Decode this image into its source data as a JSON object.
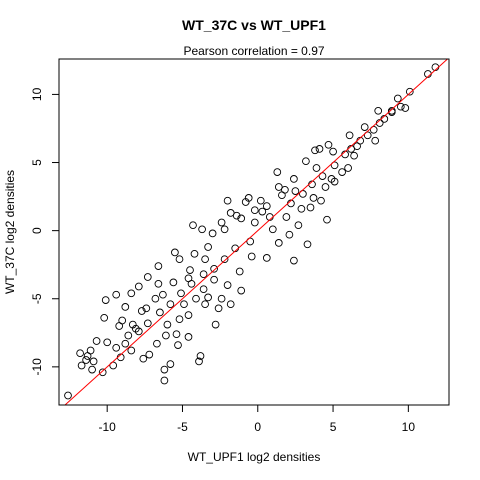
{
  "chart_data": {
    "type": "scatter",
    "title": "WT_37C vs WT_UPF1",
    "subtitle": "Pearson correlation =  0.97",
    "xlabel": "WT_UPF1 log2 densities",
    "ylabel": "WT_37C log2 densities",
    "xlim": [
      -13.2,
      12.7
    ],
    "ylim": [
      -12.8,
      12.6
    ],
    "xticks": [
      -10,
      -5,
      0,
      5,
      10
    ],
    "yticks": [
      -10,
      -5,
      0,
      5,
      10
    ],
    "xtick_labels": [
      "-10",
      "-5",
      "0",
      "5",
      "10"
    ],
    "ytick_labels": [
      "-10",
      "-5",
      "0",
      "5",
      "10"
    ],
    "point_color": "#000000",
    "line_color": "#ff0000",
    "reference_line": {
      "slope": 1,
      "intercept": 0
    },
    "grid": false,
    "points": [
      [
        -12.6,
        -12.1
      ],
      [
        -10.3,
        -10.4
      ],
      [
        -11.0,
        -10.2
      ],
      [
        -9.1,
        -9.3
      ],
      [
        -9.6,
        -9.9
      ],
      [
        -11.3,
        -9.2
      ],
      [
        -11.1,
        -8.8
      ],
      [
        -10.0,
        -8.2
      ],
      [
        -8.6,
        -7.7
      ],
      [
        -7.9,
        -7.4
      ],
      [
        -8.3,
        -6.9
      ],
      [
        -9.2,
        -7.0
      ],
      [
        -10.2,
        -6.4
      ],
      [
        -8.4,
        -8.8
      ],
      [
        -7.6,
        -9.4
      ],
      [
        -5.8,
        -9.8
      ],
      [
        -6.2,
        -10.2
      ],
      [
        -5.3,
        -8.4
      ],
      [
        -4.6,
        -7.8
      ],
      [
        -3.8,
        -9.2
      ],
      [
        -2.8,
        -6.9
      ],
      [
        -1.8,
        -5.4
      ],
      [
        -9.4,
        -4.7
      ],
      [
        -7.3,
        -3.4
      ],
      [
        -6.3,
        -4.7
      ],
      [
        -5.2,
        -2.1
      ],
      [
        -6.6,
        -2.6
      ],
      [
        -4.6,
        -3.5
      ],
      [
        -3.3,
        -1.2
      ],
      [
        -3.0,
        -0.2
      ],
      [
        -4.3,
        0.4
      ],
      [
        -2.4,
        0.6
      ],
      [
        -1.8,
        1.3
      ],
      [
        -1.4,
        1.1
      ],
      [
        -0.8,
        2.1
      ],
      [
        -0.6,
        2.4
      ],
      [
        -2.0,
        2.2
      ],
      [
        0.2,
        2.2
      ],
      [
        0.6,
        1.8
      ],
      [
        1.4,
        3.2
      ],
      [
        1.8,
        3.0
      ],
      [
        2.5,
        2.9
      ],
      [
        1.3,
        4.3
      ],
      [
        3.2,
        5.1
      ],
      [
        3.8,
        5.9
      ],
      [
        4.1,
        6.0
      ],
      [
        4.7,
        6.3
      ],
      [
        6.2,
        6.0
      ],
      [
        7.1,
        7.6
      ],
      [
        8.0,
        8.8
      ],
      [
        8.4,
        8.2
      ],
      [
        9.3,
        9.7
      ],
      [
        10.1,
        10.2
      ],
      [
        11.8,
        12.0
      ],
      [
        11.3,
        11.5
      ],
      [
        9.8,
        9.0
      ],
      [
        8.9,
        8.7
      ],
      [
        7.7,
        7.4
      ],
      [
        6.8,
        6.6
      ],
      [
        6.4,
        5.5
      ],
      [
        6.0,
        4.6
      ],
      [
        5.1,
        3.6
      ],
      [
        4.5,
        3.2
      ],
      [
        4.2,
        2.2
      ],
      [
        4.6,
        0.8
      ],
      [
        3.5,
        1.7
      ],
      [
        2.7,
        0.4
      ],
      [
        2.1,
        -0.3
      ],
      [
        1.4,
        -0.9
      ],
      [
        0.6,
        -2.0
      ],
      [
        -0.4,
        -1.9
      ],
      [
        -1.2,
        -3.0
      ],
      [
        -2.0,
        -4.0
      ],
      [
        -1.1,
        -4.4
      ],
      [
        -2.4,
        -5.0
      ],
      [
        -2.6,
        -5.7
      ],
      [
        -3.5,
        -5.4
      ],
      [
        -4.6,
        -6.2
      ],
      [
        -5.4,
        -7.6
      ],
      [
        -6.1,
        -7.7
      ],
      [
        -6.7,
        -8.3
      ],
      [
        -7.2,
        -9.1
      ],
      [
        -10.9,
        -9.6
      ],
      [
        -11.8,
        -9.0
      ],
      [
        -11.7,
        -9.9
      ],
      [
        -10.7,
        -8.1
      ],
      [
        -9.0,
        -6.6
      ],
      [
        -8.8,
        -5.6
      ],
      [
        -10.1,
        -5.1
      ],
      [
        -7.9,
        -4.1
      ],
      [
        -8.4,
        -4.6
      ],
      [
        -6.6,
        -3.9
      ],
      [
        -5.5,
        -1.6
      ],
      [
        -4.2,
        -1.7
      ],
      [
        -3.7,
        0.1
      ],
      [
        -2.2,
        0.1
      ],
      [
        -1.1,
        0.9
      ],
      [
        -0.2,
        1.5
      ],
      [
        -0.2,
        0.6
      ],
      [
        0.8,
        1.0
      ],
      [
        1.0,
        0.1
      ],
      [
        -0.5,
        -0.8
      ],
      [
        -1.5,
        -1.3
      ],
      [
        -2.2,
        -2.1
      ],
      [
        -2.9,
        -2.8
      ],
      [
        -3.6,
        -3.2
      ],
      [
        -4.4,
        -3.9
      ],
      [
        -5.1,
        -4.6
      ],
      [
        -5.8,
        -5.4
      ],
      [
        -6.5,
        -6.0
      ],
      [
        -7.3,
        -6.8
      ],
      [
        -8.1,
        -7.2
      ],
      [
        -8.8,
        -8.3
      ],
      [
        -9.4,
        -8.6
      ],
      [
        -7.7,
        -5.9
      ],
      [
        -4.9,
        -5.4
      ],
      [
        -3.6,
        -4.3
      ],
      [
        -2.9,
        -3.6
      ],
      [
        2.2,
        2.0
      ],
      [
        3.0,
        2.7
      ],
      [
        3.6,
        3.4
      ],
      [
        4.3,
        4.0
      ],
      [
        5.1,
        4.8
      ],
      [
        5.8,
        5.6
      ],
      [
        6.6,
        6.2
      ],
      [
        7.3,
        7.0
      ],
      [
        8.1,
        7.9
      ],
      [
        8.9,
        8.8
      ],
      [
        9.5,
        9.1
      ],
      [
        6.1,
        7.0
      ],
      [
        5.0,
        5.8
      ],
      [
        3.9,
        4.6
      ],
      [
        2.4,
        3.8
      ],
      [
        1.6,
        2.6
      ],
      [
        0.3,
        1.4
      ],
      [
        -3.5,
        -2.1
      ],
      [
        -4.5,
        -2.9
      ],
      [
        -5.6,
        -3.8
      ],
      [
        -6.8,
        -5.0
      ],
      [
        -7.4,
        -5.7
      ],
      [
        -6.0,
        -6.9
      ],
      [
        -5.2,
        -6.5
      ],
      [
        -4.1,
        -5.0
      ],
      [
        -3.3,
        -4.9
      ],
      [
        1.9,
        1.0
      ],
      [
        2.9,
        1.6
      ],
      [
        3.7,
        2.4
      ],
      [
        4.9,
        3.8
      ],
      [
        5.6,
        4.3
      ],
      [
        7.8,
        6.6
      ],
      [
        2.4,
        -2.2
      ],
      [
        3.3,
        -1.0
      ],
      [
        -6.2,
        -11.0
      ],
      [
        -3.9,
        -9.6
      ],
      [
        -11.4,
        -9.5
      ]
    ]
  }
}
